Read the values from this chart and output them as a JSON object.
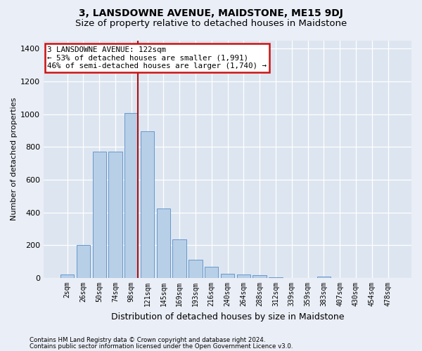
{
  "title": "3, LANSDOWNE AVENUE, MAIDSTONE, ME15 9DJ",
  "subtitle": "Size of property relative to detached houses in Maidstone",
  "xlabel": "Distribution of detached houses by size in Maidstone",
  "ylabel": "Number of detached properties",
  "categories": [
    "2sqm",
    "26sqm",
    "50sqm",
    "74sqm",
    "98sqm",
    "121sqm",
    "145sqm",
    "169sqm",
    "193sqm",
    "216sqm",
    "240sqm",
    "264sqm",
    "288sqm",
    "312sqm",
    "339sqm",
    "359sqm",
    "383sqm",
    "407sqm",
    "430sqm",
    "454sqm",
    "478sqm"
  ],
  "values": [
    20,
    200,
    770,
    770,
    1005,
    895,
    425,
    235,
    110,
    70,
    25,
    20,
    18,
    5,
    0,
    0,
    10,
    0,
    0,
    0,
    0
  ],
  "bar_color": "#b8cfe8",
  "bar_edge_color": "#6699cc",
  "vline_color": "#aa1111",
  "annotation_title": "3 LANSDOWNE AVENUE: 122sqm",
  "annotation_line1": "← 53% of detached houses are smaller (1,991)",
  "annotation_line2": "46% of semi-detached houses are larger (1,740) →",
  "annotation_box_color": "#cc1111",
  "ylim": [
    0,
    1450
  ],
  "yticks": [
    0,
    200,
    400,
    600,
    800,
    1000,
    1200,
    1400
  ],
  "footer1": "Contains HM Land Registry data © Crown copyright and database right 2024.",
  "footer2": "Contains public sector information licensed under the Open Government Licence v3.0.",
  "bg_color": "#eaeef6",
  "plot_bg_color": "#dde5f0",
  "title_fontsize": 10,
  "subtitle_fontsize": 9.5
}
